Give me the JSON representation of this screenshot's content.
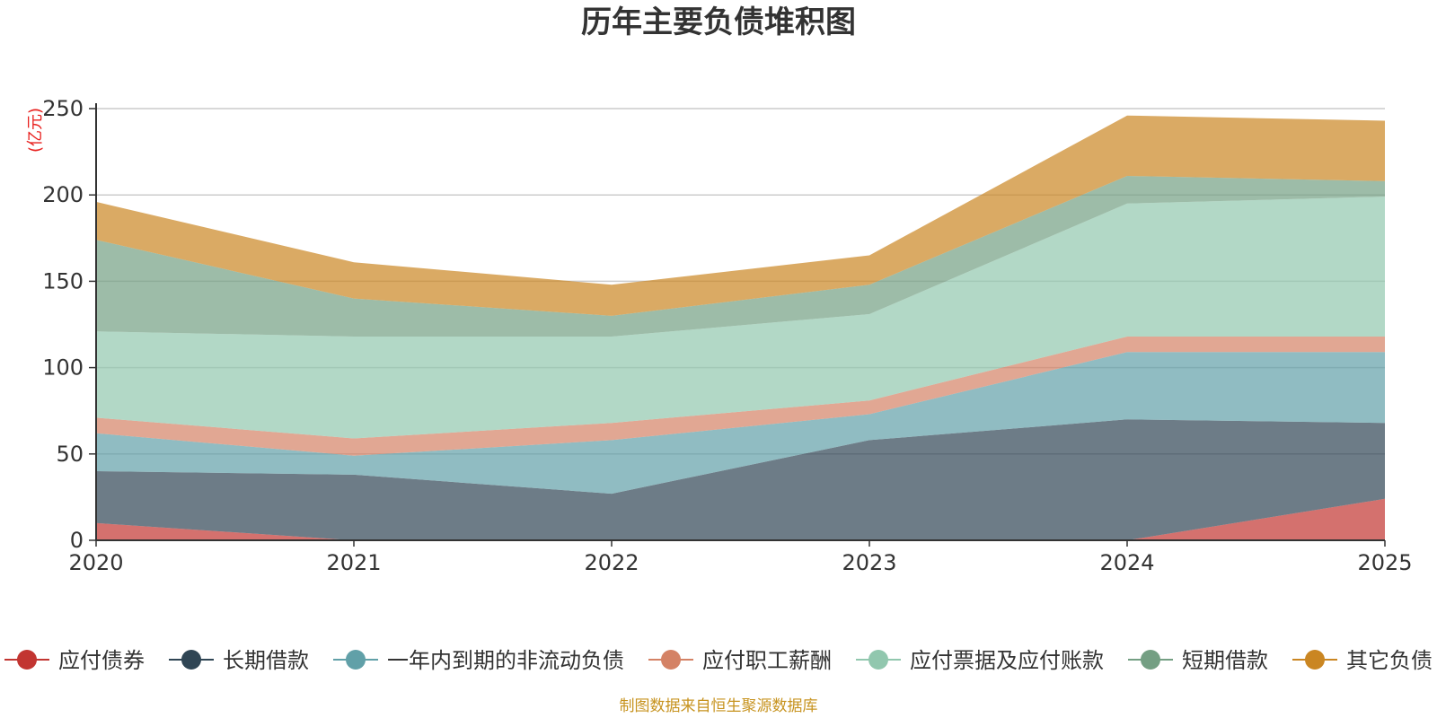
{
  "chart_data": {
    "type": "area",
    "stacked": true,
    "title": "历年主要负债堆积图",
    "unit_label": "(亿元)",
    "x": [
      "2020",
      "2021",
      "2022",
      "2023",
      "2024",
      "2025"
    ],
    "ylim": [
      0,
      250
    ],
    "y_ticks": [
      "0",
      "50",
      "100",
      "150",
      "200",
      "250"
    ],
    "grid": true,
    "series": [
      {
        "name": "应付债券",
        "color": "#c23531",
        "values": [
          10,
          0,
          0,
          0,
          0,
          24
        ]
      },
      {
        "name": "长期借款",
        "color": "#2f4554",
        "values": [
          30,
          38,
          27,
          58,
          70,
          44
        ]
      },
      {
        "name": "一年内到期的非流动负债",
        "color": "#61a0a8",
        "values": [
          22,
          11,
          31,
          15,
          39,
          41
        ]
      },
      {
        "name": "应付职工薪酬",
        "color": "#d48265",
        "values": [
          9,
          10,
          10,
          8,
          9,
          9
        ]
      },
      {
        "name": "应付票据及应付账款",
        "color": "#91c7ae",
        "values": [
          50,
          59,
          50,
          50,
          77,
          81
        ]
      },
      {
        "name": "短期借款",
        "color": "#749f83",
        "values": [
          53,
          22,
          12,
          17,
          16,
          9
        ]
      },
      {
        "name": "其它负债",
        "color": "#ca8622",
        "values": [
          22,
          21,
          18,
          17,
          35,
          35
        ]
      }
    ],
    "legend_position": "bottom",
    "source_note": "制图数据来自恒生聚源数据库"
  }
}
